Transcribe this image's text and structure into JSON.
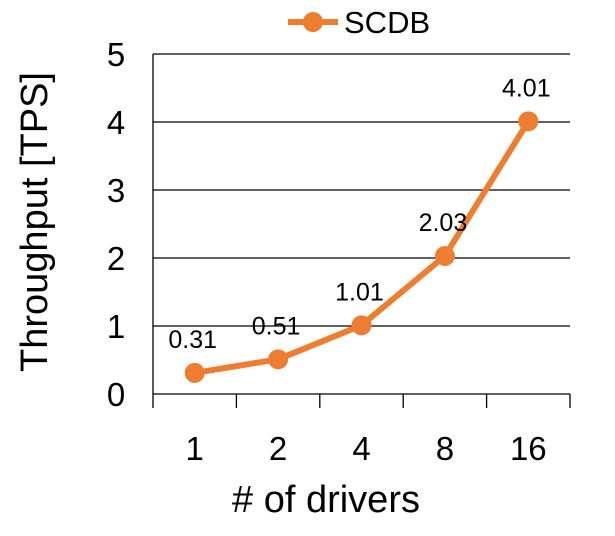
{
  "chart_data": {
    "type": "line",
    "title": "",
    "xlabel": "# of drivers",
    "ylabel": "Throughput [TPS]",
    "categories": [
      "1",
      "2",
      "4",
      "8",
      "16"
    ],
    "series": [
      {
        "name": "SCDB",
        "values": [
          0.31,
          0.51,
          1.01,
          2.03,
          4.01
        ],
        "data_labels": [
          "0.31",
          "0.51",
          "1.01",
          "2.03",
          "4.01"
        ],
        "color": "#ED7D31"
      }
    ],
    "ylim": [
      0,
      5
    ],
    "yticks": [
      "0",
      "1",
      "2",
      "3",
      "4",
      "5"
    ],
    "grid": true,
    "legend": "top"
  }
}
